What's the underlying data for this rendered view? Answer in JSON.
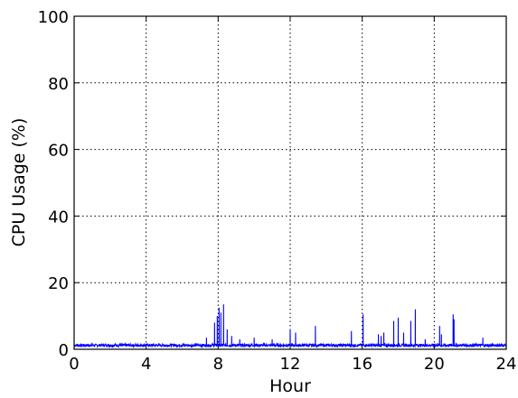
{
  "chart_data": {
    "type": "line",
    "xlabel": "Hour",
    "ylabel": "CPU Usage (%)",
    "xlim": [
      0,
      24
    ],
    "ylim": [
      0,
      100
    ],
    "xticks": [
      0,
      4,
      8,
      12,
      16,
      20,
      24
    ],
    "yticks": [
      0,
      20,
      40,
      60,
      80,
      100
    ],
    "grid": true,
    "grid_style": "dotted",
    "line_color": "#0000ff",
    "baseline": 1.2,
    "series": [
      {
        "x": [
          7.35,
          7.8,
          7.95,
          8.05,
          8.15,
          8.3,
          8.5,
          8.75,
          9.2,
          10.0,
          11.0,
          12.0,
          12.3,
          13.4,
          15.4,
          16.05,
          16.9,
          17.05,
          17.2,
          17.75,
          18.0,
          18.3,
          18.7,
          18.95,
          19.5,
          20.3,
          20.4,
          21.05,
          21.1,
          22.7
        ],
        "y": [
          3.5,
          8,
          10,
          12.5,
          11,
          13.5,
          6,
          4,
          3,
          3.5,
          3,
          6,
          5,
          7,
          5.5,
          10.5,
          4.5,
          4,
          5,
          8.5,
          9.5,
          5,
          8.5,
          12,
          3,
          7,
          4.5,
          10.5,
          9,
          3.5
        ]
      }
    ]
  }
}
